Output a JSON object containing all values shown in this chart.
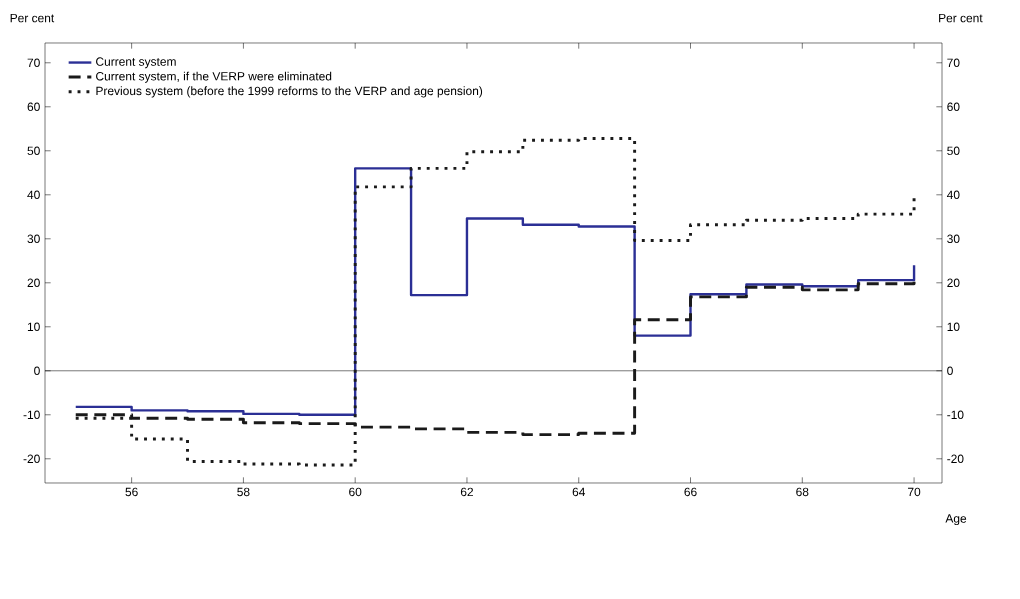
{
  "chart_data": {
    "type": "step",
    "xlabel": "Age",
    "ylabel": "Per cent",
    "y2label": "Per cent",
    "x": [
      55,
      56,
      57,
      58,
      59,
      60,
      61,
      62,
      63,
      64,
      65,
      66,
      67,
      68,
      69,
      70
    ],
    "series": [
      {
        "name": "Current system",
        "color": "#2b2f95",
        "line_style": "solid",
        "values": [
          -8.2,
          -9,
          -9.2,
          -9.8,
          -10,
          46,
          17.2,
          34.6,
          33.2,
          32.8,
          8,
          17.4,
          19.6,
          19.2,
          20.6,
          24
        ]
      },
      {
        "name": "Current system, if the VERP were eliminated",
        "color": "#1a1a1a",
        "line_style": "dashed",
        "values": [
          -10,
          -10.8,
          -11,
          -11.8,
          -12,
          -12.8,
          -13.2,
          -14,
          -14.5,
          -14.2,
          11.6,
          16.8,
          19,
          18.4,
          19.8,
          21
        ]
      },
      {
        "name": "Previous system (before the 1999 reforms to the VERP and age pension)",
        "color": "#1a1a1a",
        "line_style": "dotted",
        "values": [
          -10.8,
          -15.5,
          -20.6,
          -21.2,
          -21.4,
          41.8,
          46,
          49.8,
          52.4,
          52.8,
          29.6,
          33.2,
          34.2,
          34.6,
          35.6,
          39.5
        ]
      }
    ],
    "xlim": [
      54.45,
      70.5
    ],
    "xticks": [
      56,
      58,
      60,
      62,
      64,
      66,
      68,
      70
    ],
    "ylim": [
      -25.5,
      74.5
    ],
    "yticks": [
      -20,
      -10,
      0,
      10,
      20,
      30,
      40,
      50,
      60,
      70
    ],
    "y2lim": [
      -25.5,
      74.5
    ],
    "y2ticks": [
      -20,
      -10,
      0,
      10,
      20,
      30,
      40,
      50,
      60,
      70
    ],
    "ref_lines": [
      {
        "axis": "y",
        "value": 0,
        "color": "#000000"
      }
    ],
    "legend": "top left",
    "grid": false
  }
}
